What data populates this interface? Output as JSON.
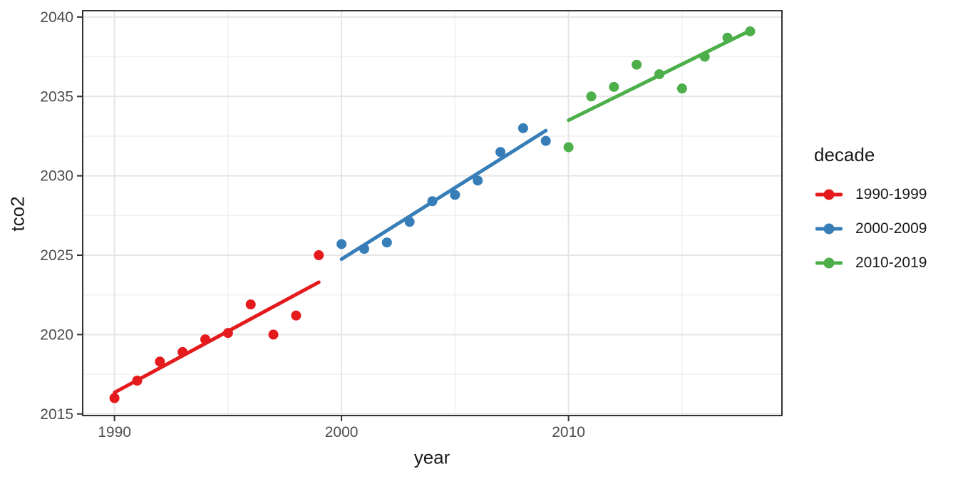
{
  "figure": {
    "background": "#FFFFFF",
    "panel_background": "#FFFFFF",
    "panel_border_color": "#333333",
    "grid_major_color": "#E5E5E5",
    "grid_minor_color": "#F0F0F0",
    "tick_mark_color": "#333333",
    "tick_label_color": "#4D4D4D"
  },
  "axes": {
    "x_title": "year",
    "y_title": "tco2"
  },
  "legend": {
    "title": "decade",
    "items": [
      {
        "label": "1990-1999",
        "color": "#E41A1C"
      },
      {
        "label": "2000-2009",
        "color": "#377EB8"
      },
      {
        "label": "2010-2019",
        "color": "#4DAF4A"
      }
    ]
  },
  "chart_data": {
    "type": "scatter",
    "title": "",
    "xlabel": "year",
    "ylabel": "tco2",
    "legend_title": "decade",
    "legend_position": "right",
    "grid": true,
    "xlim": [
      1988.6,
      2019.4
    ],
    "ylim": [
      2014.9,
      2040.4
    ],
    "x_major_ticks": [
      1990,
      2000,
      2010
    ],
    "x_minor_ticks": [
      1995,
      2005,
      2015
    ],
    "y_major_ticks": [
      2015,
      2020,
      2025,
      2030,
      2035,
      2040
    ],
    "y_minor_ticks": [
      2017.5,
      2022.5,
      2027.5,
      2032.5,
      2037.5
    ],
    "series": [
      {
        "name": "1990-1999",
        "color": "#E41A1C",
        "x": [
          1990,
          1991,
          1992,
          1993,
          1994,
          1995,
          1996,
          1997,
          1998,
          1999
        ],
        "y": [
          2016.0,
          2017.1,
          2018.3,
          2018.9,
          2019.7,
          2020.1,
          2021.9,
          2020.0,
          2021.2,
          2025.0
        ],
        "trend": {
          "x1": 1990,
          "y1": 2016.35,
          "x2": 1999,
          "y2": 2023.3
        }
      },
      {
        "name": "2000-2009",
        "color": "#377EB8",
        "x": [
          2000,
          2001,
          2002,
          2003,
          2004,
          2005,
          2006,
          2007,
          2008,
          2009
        ],
        "y": [
          2025.7,
          2025.4,
          2025.8,
          2027.1,
          2028.4,
          2028.8,
          2029.7,
          2031.5,
          2033.0,
          2032.2
        ],
        "trend": {
          "x1": 2000,
          "y1": 2024.75,
          "x2": 2009,
          "y2": 2032.85
        }
      },
      {
        "name": "2010-2019",
        "color": "#4DAF4A",
        "x": [
          2010,
          2011,
          2012,
          2013,
          2014,
          2015,
          2016,
          2017,
          2018
        ],
        "y": [
          2031.8,
          2035.0,
          2035.6,
          2037.0,
          2036.4,
          2035.5,
          2037.5,
          2038.7,
          2039.1
        ],
        "trend": {
          "x1": 2010,
          "y1": 2033.5,
          "x2": 2018,
          "y2": 2039.15
        }
      }
    ]
  }
}
